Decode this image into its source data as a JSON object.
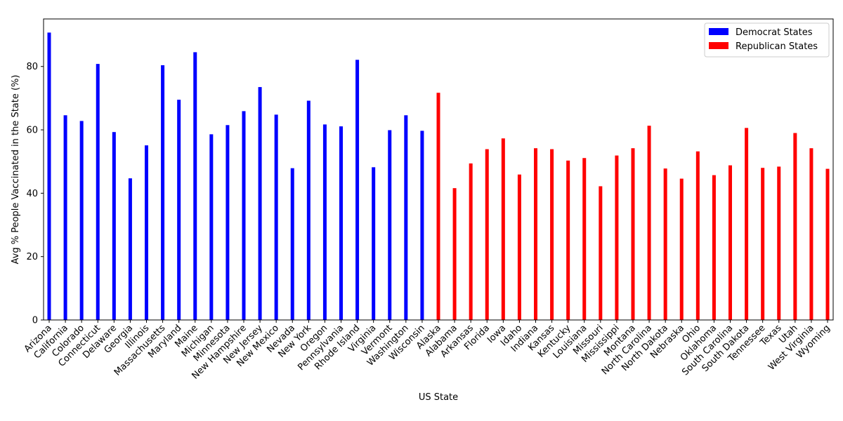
{
  "chart_data": {
    "type": "bar",
    "xlabel": "US State",
    "ylabel": "Avg % People Vaccinated in the State (%)",
    "ylim": [
      0,
      95
    ],
    "yticks": [
      0,
      20,
      40,
      60,
      80
    ],
    "grid": false,
    "legend_position": "top-right",
    "series": [
      {
        "name": "Democrat States",
        "color": "#0000ff",
        "categories": [
          "Arizona",
          "California",
          "Colorado",
          "Connecticut",
          "Delaware",
          "Georgia",
          "Illinois",
          "Massachusetts",
          "Maryland",
          "Maine",
          "Michigan",
          "Minnesota",
          "New Hampshire",
          "New Jersey",
          "New Mexico",
          "Nevada",
          "New York",
          "Oregon",
          "Pennsylvania",
          "Rhode Island",
          "Virginia",
          "Vermont",
          "Washington",
          "Wisconsin"
        ],
        "values": [
          90.7,
          64.6,
          62.8,
          80.8,
          59.3,
          44.7,
          55.1,
          80.4,
          69.5,
          84.5,
          58.6,
          61.5,
          65.9,
          73.5,
          64.8,
          47.9,
          69.2,
          61.7,
          61.1,
          82.1,
          48.2,
          59.9,
          64.6,
          59.7
        ]
      },
      {
        "name": "Republican States",
        "color": "#ff0000",
        "categories": [
          "Alaska",
          "Alabama",
          "Arkansas",
          "Florida",
          "Iowa",
          "Idaho",
          "Indiana",
          "Kansas",
          "Kentucky",
          "Louisiana",
          "Missouri",
          "Mississippi",
          "Montana",
          "North Carolina",
          "North Dakota",
          "Nebraska",
          "Ohio",
          "Oklahoma",
          "South Carolina",
          "South Dakota",
          "Tennessee",
          "Texas",
          "Utah",
          "West Virginia",
          "Wyoming"
        ],
        "values": [
          71.7,
          41.6,
          49.4,
          53.9,
          57.3,
          45.9,
          54.2,
          53.9,
          50.3,
          51.1,
          42.2,
          51.9,
          54.2,
          61.3,
          47.8,
          44.6,
          53.2,
          45.7,
          48.8,
          60.6,
          48.0,
          48.4,
          59.0,
          54.2,
          47.7
        ]
      }
    ]
  }
}
